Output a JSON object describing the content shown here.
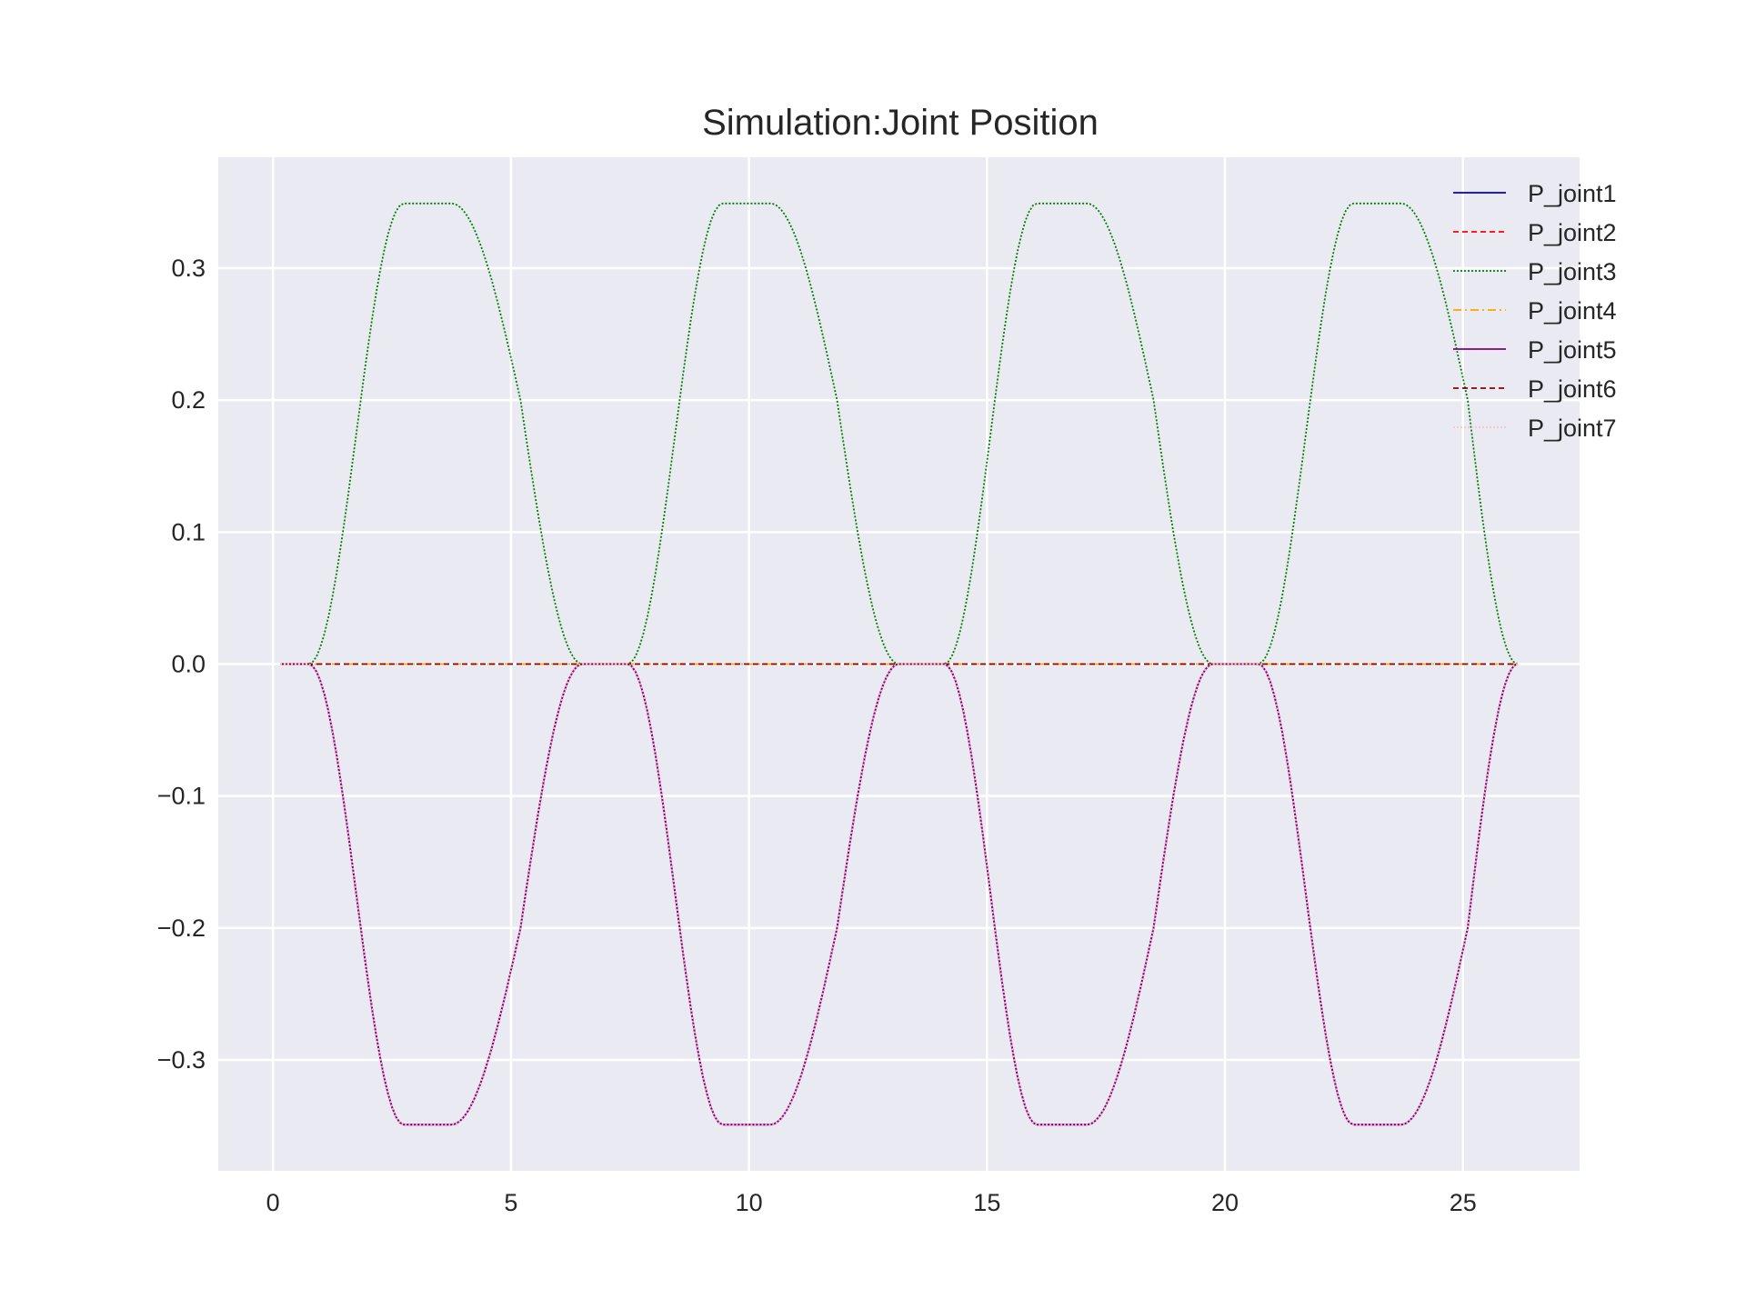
{
  "chart_data": {
    "type": "line",
    "title": "Simulation:Joint Position",
    "xlabel": "",
    "ylabel": "",
    "xlim": [
      -1.15,
      27.45
    ],
    "ylim": [
      -0.384,
      0.384
    ],
    "xticks": [
      0,
      5,
      10,
      15,
      20,
      25
    ],
    "xtick_labels": [
      "0",
      "5",
      "10",
      "15",
      "20",
      "25"
    ],
    "yticks": [
      -0.3,
      -0.2,
      -0.1,
      0.0,
      0.1,
      0.2,
      0.3
    ],
    "ytick_labels": [
      "−0.3",
      "−0.2",
      "−0.1",
      "0.0",
      "0.1",
      "0.2",
      "0.3"
    ],
    "grid": true,
    "background": "#EAEAF2",
    "legend_position": "top-right",
    "x": [
      0.15,
      0.75,
      2.75,
      3.75,
      5.2,
      6.5,
      7.45,
      9.45,
      10.45,
      11.85,
      13.15,
      14.1,
      16.05,
      17.1,
      18.5,
      19.75,
      20.7,
      22.7,
      23.7,
      25.1,
      26.15
    ],
    "series": [
      {
        "name": "P_joint1",
        "color": "#0000CC",
        "dash": "",
        "values": [
          0,
          0,
          -0.349,
          -0.349,
          -0.2,
          0,
          0,
          -0.349,
          -0.349,
          -0.2,
          0,
          0,
          -0.349,
          -0.349,
          -0.2,
          0,
          0,
          -0.349,
          -0.349,
          -0.2,
          0
        ]
      },
      {
        "name": "P_joint2",
        "color": "#FF0000",
        "dash": "6,4",
        "values": [
          0,
          0,
          -0.349,
          -0.349,
          -0.2,
          0,
          0,
          -0.349,
          -0.349,
          -0.2,
          0,
          0,
          -0.349,
          -0.349,
          -0.2,
          0,
          0,
          -0.349,
          -0.349,
          -0.2,
          0
        ]
      },
      {
        "name": "P_joint3",
        "color": "#007F00",
        "dash": "2,2",
        "values": [
          0,
          0,
          0.349,
          0.349,
          0.2,
          0,
          0,
          0.349,
          0.349,
          0.2,
          0,
          0,
          0.349,
          0.349,
          0.2,
          0,
          0,
          0.349,
          0.349,
          0.2,
          0
        ]
      },
      {
        "name": "P_joint4",
        "color": "#FFA500",
        "dash": "9,4,2,4",
        "values": [
          0,
          0,
          0,
          0,
          0,
          0,
          0,
          0,
          0,
          0,
          0,
          0,
          0,
          0,
          0,
          0,
          0,
          0,
          0,
          0,
          0
        ]
      },
      {
        "name": "P_joint5",
        "color": "#800080",
        "dash": "",
        "values": [
          0,
          0,
          -0.349,
          -0.349,
          -0.2,
          0,
          0,
          -0.349,
          -0.349,
          -0.2,
          0,
          0,
          -0.349,
          -0.349,
          -0.2,
          0,
          0,
          -0.349,
          -0.349,
          -0.2,
          0
        ]
      },
      {
        "name": "P_joint6",
        "color": "#8B0000",
        "dash": "6,4",
        "values": [
          0,
          0,
          0,
          0,
          0,
          0,
          0,
          0,
          0,
          0,
          0,
          0,
          0,
          0,
          0,
          0,
          0,
          0,
          0,
          0,
          0
        ]
      },
      {
        "name": "P_joint7",
        "color": "#FFC0CB",
        "dash": "2,2",
        "values": [
          0,
          0,
          -0.349,
          -0.349,
          -0.2,
          0,
          0,
          -0.349,
          -0.349,
          -0.2,
          0,
          0,
          -0.349,
          -0.349,
          -0.2,
          0,
          0,
          -0.349,
          -0.349,
          -0.2,
          0
        ]
      }
    ]
  }
}
